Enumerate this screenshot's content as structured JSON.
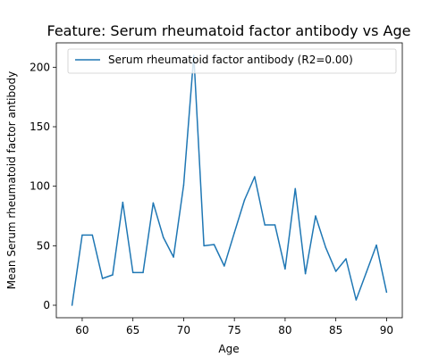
{
  "chart_data": {
    "type": "line",
    "title": "Feature: Serum rheumatoid factor antibody vs Age",
    "xlabel": "Age",
    "ylabel": "Mean Serum rheumatoid factor antibody",
    "xlim": [
      57.45,
      91.55
    ],
    "ylim": [
      -10.5,
      220.5
    ],
    "xticks": [
      60,
      65,
      70,
      75,
      80,
      85,
      90
    ],
    "yticks": [
      0,
      50,
      100,
      150,
      200
    ],
    "grid": false,
    "legend": {
      "placement": "top-center"
    },
    "series": [
      {
        "name": "Serum rheumatoid factor antibody (R2=0.00)",
        "color": "#1f77b4",
        "x": [
          59,
          60,
          61,
          62,
          63,
          64,
          65,
          66,
          67,
          68,
          69,
          70,
          71,
          72,
          73,
          74,
          75,
          76,
          77,
          78,
          79,
          80,
          81,
          82,
          83,
          84,
          85,
          86,
          87,
          88,
          89,
          90
        ],
        "y": [
          0,
          59,
          59,
          22.5,
          25.5,
          86.5,
          27.5,
          27.5,
          86,
          57,
          40.5,
          101,
          210,
          50,
          51,
          33,
          61,
          88.5,
          108,
          67.5,
          67.5,
          30.5,
          98,
          26.5,
          75,
          48.5,
          28.5,
          39,
          4.5,
          27.5,
          50.5,
          11
        ]
      }
    ]
  }
}
